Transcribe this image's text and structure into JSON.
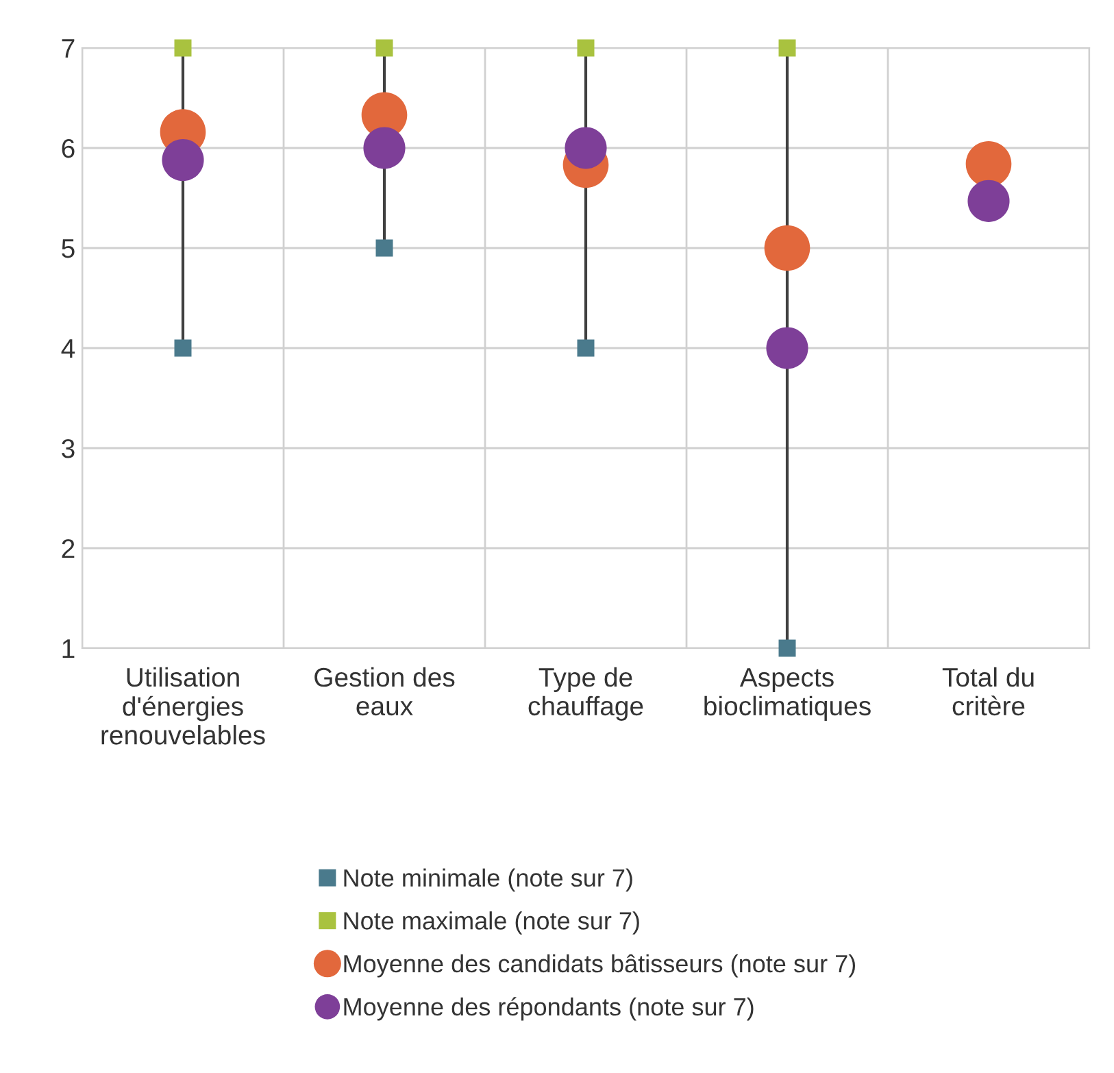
{
  "chart_data": {
    "type": "scatter",
    "categories": [
      "Utilisation\nd'énergies\nrenouvelables",
      "Gestion des\neaux",
      "Type de\nchauffage",
      "Aspects\nbioclimatiques",
      "Total du\ncritère"
    ],
    "series": [
      {
        "name": "Note minimale (note sur 7)",
        "color": "#4a7a8c",
        "marker": "square",
        "values": [
          4,
          5,
          4,
          1,
          null
        ]
      },
      {
        "name": "Note maximale (note sur 7)",
        "color": "#a9c23f",
        "marker": "square",
        "values": [
          7,
          7,
          7,
          7,
          null
        ]
      },
      {
        "name": "Moyenne des candidats bâtisseurs (note sur 7)",
        "color": "#e2683c",
        "marker": "circle",
        "values": [
          6.16,
          6.33,
          5.83,
          5.0,
          5.84
        ]
      },
      {
        "name": "Moyenne des répondants (note sur 7)",
        "color": "#7e3f98",
        "marker": "circle",
        "values": [
          5.88,
          6.0,
          6.0,
          4.0,
          5.47
        ]
      }
    ],
    "ylim": [
      1,
      7
    ],
    "yticks": [
      1,
      2,
      3,
      4,
      5,
      6,
      7
    ],
    "grid": true,
    "legend": "bottom"
  }
}
